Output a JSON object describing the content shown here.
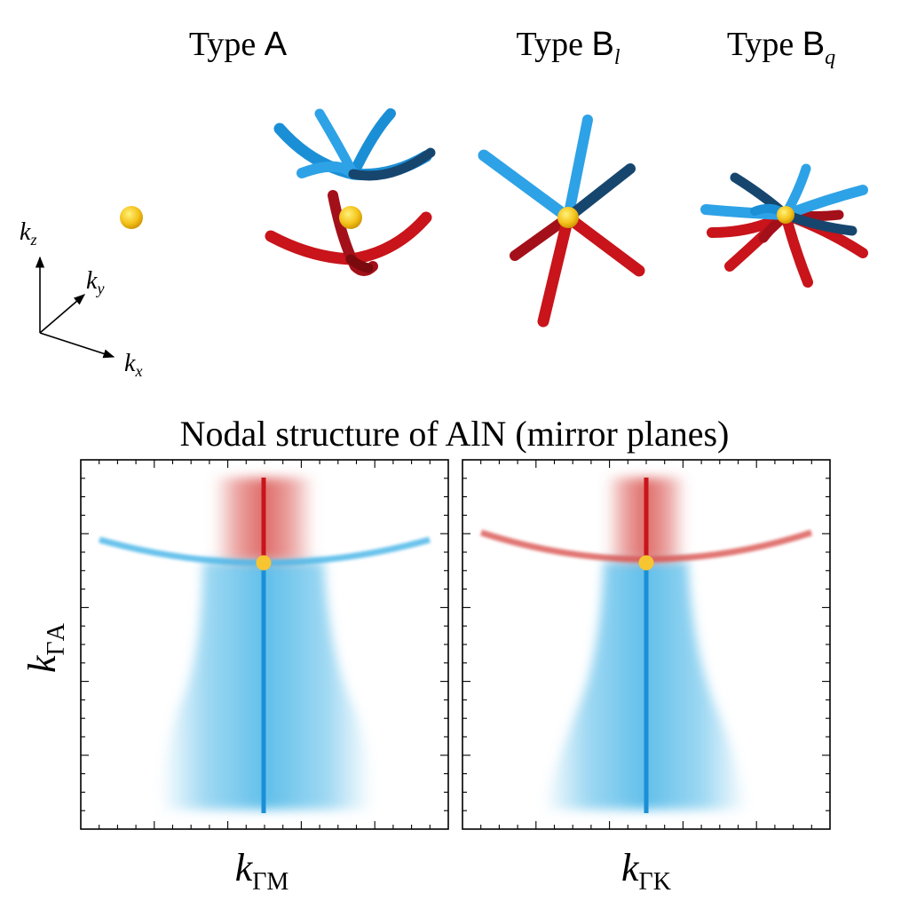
{
  "top_panel": {
    "titles": [
      {
        "prefix": "Type ",
        "letter": "A",
        "sub": ""
      },
      {
        "prefix": "Type ",
        "letter": "B",
        "sub": "l"
      },
      {
        "prefix": "Type ",
        "letter": "B",
        "sub": "q"
      }
    ],
    "axes": {
      "kz": {
        "base": "k",
        "sub": "z"
      },
      "ky": {
        "base": "k",
        "sub": "y"
      },
      "kx": {
        "base": "k",
        "sub": "x"
      }
    }
  },
  "bottom_panel": {
    "title": "Nodal structure of AlN (mirror planes)",
    "ylabel": {
      "base": "k",
      "sub": "ΓA"
    },
    "panels": [
      {
        "xlabel": {
          "base": "k",
          "sub": "ΓM"
        },
        "arc_color": "#4fb8e8"
      },
      {
        "xlabel": {
          "base": "k",
          "sub": "ΓK"
        },
        "arc_color": "#d9534f"
      }
    ]
  },
  "colors": {
    "blue": "#1b8fd6",
    "blue_dark": "#16466e",
    "red": "#c8141a",
    "red_dark": "#7a0a0d",
    "yellow": "#f7c531",
    "light_blue": "#4fb8e8"
  }
}
